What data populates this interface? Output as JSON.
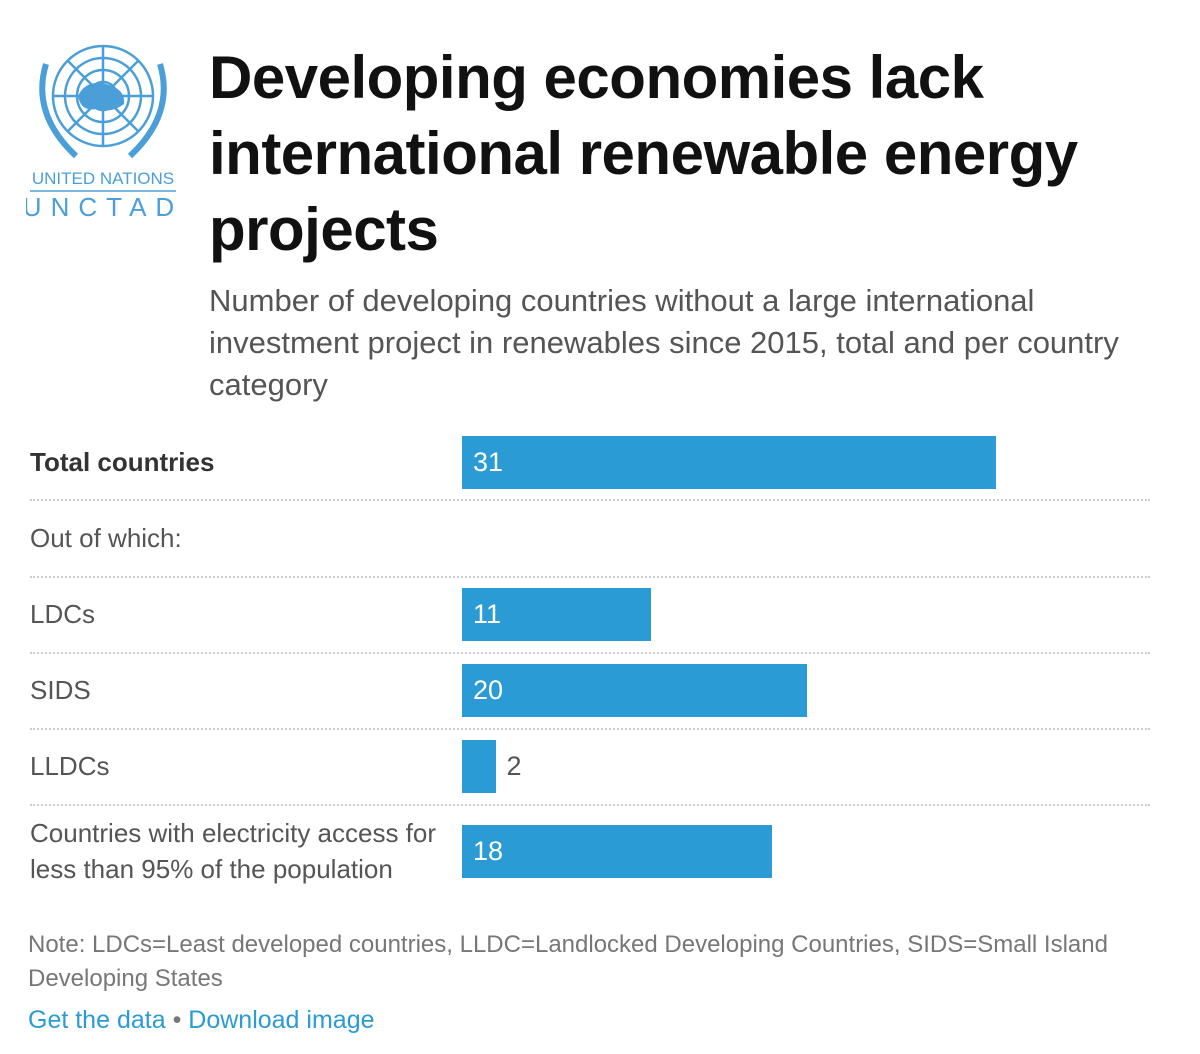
{
  "logo": {
    "text_line1": "UNITED NATIONS",
    "text_line2": "UNCTAD",
    "color": "#4a9fd8"
  },
  "title": "Developing economies lack international renewable energy projects",
  "subtitle": "Number of developing countries without a large international investment project in renewables since 2015, total and per country category",
  "chart_data": {
    "type": "bar",
    "orientation": "horizontal",
    "bar_color": "#2a9bd5",
    "rows": [
      {
        "label": "Total countries",
        "value": 31,
        "bold": true
      },
      {
        "label": "Out of which:",
        "value": null
      },
      {
        "label": "LDCs",
        "value": 11
      },
      {
        "label": "SIDS",
        "value": 20
      },
      {
        "label": "LLDCs",
        "value": 2
      },
      {
        "label": "Countries with electricity access for less than 95% of the population",
        "value": 18
      }
    ],
    "xlim": [
      0,
      31
    ]
  },
  "note": "Note: LDCs=Least developed countries, LLDC=Landlocked Developing Countries, SIDS=Small Island Developing States",
  "links": {
    "get_data": "Get the data",
    "separator": "•",
    "download": "Download image"
  }
}
